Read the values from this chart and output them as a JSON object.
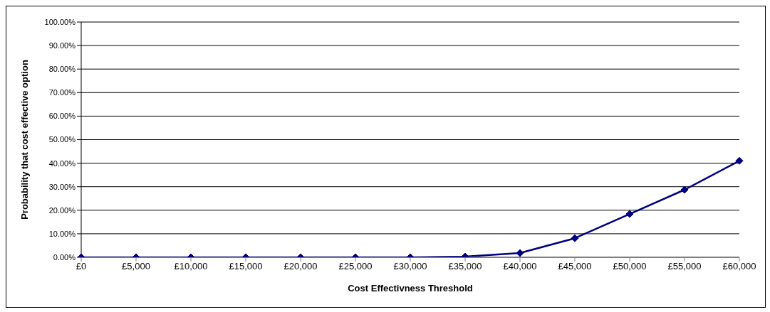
{
  "chart_data": {
    "type": "line",
    "xlabel": "Cost Effectivness Threshold",
    "ylabel": "Probability that cost effective option",
    "categories": [
      "£0",
      "£5,000",
      "£10,000",
      "£15,000",
      "£20,000",
      "£25,000",
      "£30,000",
      "£35,000",
      "£40,000",
      "£45,000",
      "£50,000",
      "£55,000",
      "£60,000"
    ],
    "series": [
      {
        "color": "#000080",
        "values": [
          0,
          0,
          0,
          0,
          0,
          0,
          0,
          0.3,
          1.8,
          8.1,
          18.4,
          28.7,
          41.0
        ]
      }
    ],
    "ylim": [
      0,
      100
    ],
    "yticks": [
      {
        "value": 0,
        "label": "0.00%"
      },
      {
        "value": 10,
        "label": "10.00%"
      },
      {
        "value": 20,
        "label": "20.00%"
      },
      {
        "value": 30,
        "label": "30.00%"
      },
      {
        "value": 40,
        "label": "40.00%"
      },
      {
        "value": 50,
        "label": "50.00%"
      },
      {
        "value": 60,
        "label": "60.00%"
      },
      {
        "value": 70,
        "label": "70.00%"
      },
      {
        "value": 80,
        "label": "80.00%"
      },
      {
        "value": 90,
        "label": "90.00%"
      },
      {
        "value": 100,
        "label": "100.00%"
      }
    ],
    "grid": "y",
    "marker": "diamond",
    "line_style": "solid",
    "legend": false
  }
}
